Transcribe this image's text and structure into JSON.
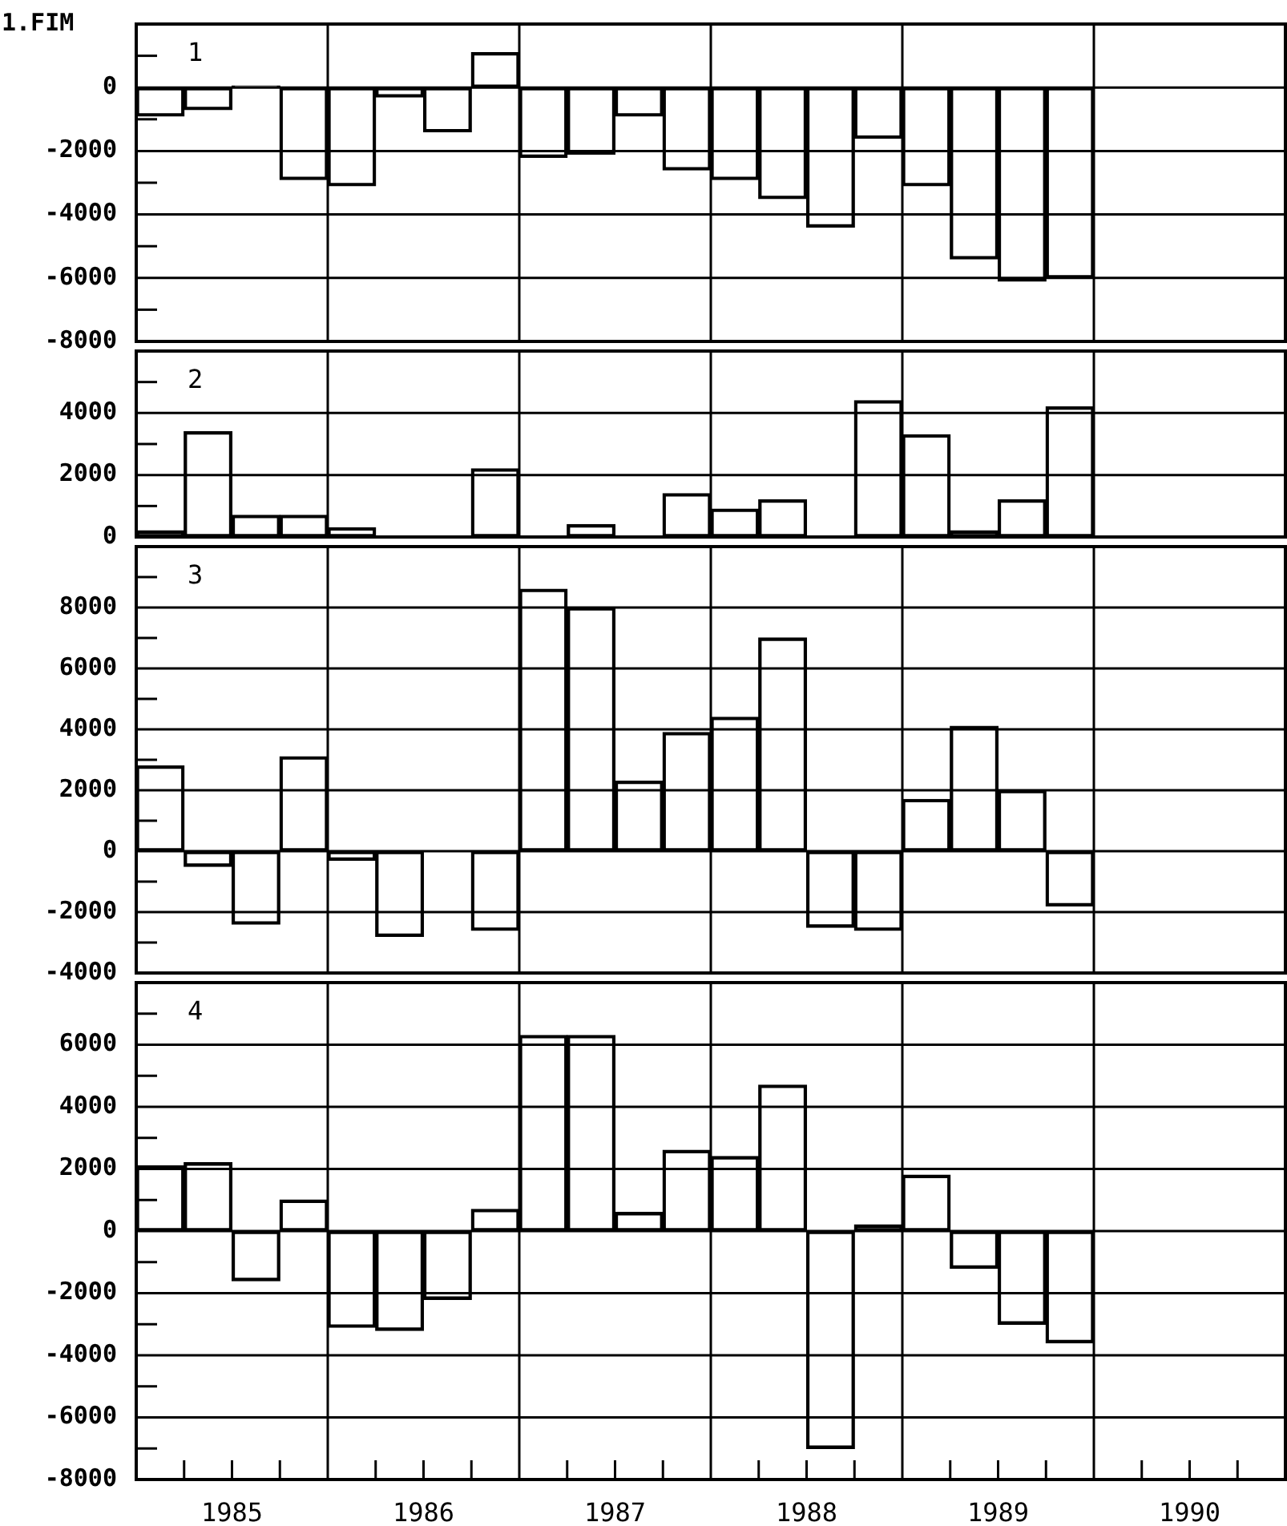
{
  "chart_data": [
    {
      "type": "bar",
      "title": "1",
      "ylabel": "1.FIM",
      "color": "#000000",
      "grid": "y",
      "tick_labels": "y",
      "x": [
        1985.125,
        1985.375,
        1985.625,
        1985.875,
        1986.125,
        1986.375,
        1986.625,
        1986.875,
        1987.125,
        1987.375,
        1987.625,
        1987.875,
        1988.125,
        1988.375,
        1988.625,
        1988.875,
        1989.125,
        1989.375,
        1989.625,
        1989.875
      ],
      "values": [
        -900,
        -700,
        50,
        -2900,
        -3100,
        -300,
        -1400,
        1100,
        -2200,
        -2100,
        -900,
        -2600,
        -2900,
        -3500,
        -4400,
        -1600,
        -3100,
        -5400,
        -6100,
        -6000
      ],
      "xlim": [
        1985,
        1991
      ],
      "ylim": [
        -8000,
        2000
      ],
      "yticks": [
        -8000,
        {
          "value": -7000,
          "label": null
        },
        -6000,
        {
          "value": -5000,
          "label": null
        },
        -4000,
        {
          "value": -3000,
          "label": null
        },
        -2000,
        {
          "value": -1000,
          "label": null
        },
        0,
        {
          "value": 1000,
          "label": null
        }
      ],
      "ref_lines": [
        {
          "axis": "x",
          "value": 1986,
          "color": "#000000"
        },
        {
          "axis": "x",
          "value": 1987,
          "color": "#000000"
        },
        {
          "axis": "x",
          "value": 1988,
          "color": "#000000"
        },
        {
          "axis": "x",
          "value": 1989,
          "color": "#000000"
        },
        {
          "axis": "x",
          "value": 1990,
          "color": "#000000"
        }
      ]
    },
    {
      "type": "bar",
      "title": "2",
      "color": "#000000",
      "grid": "y",
      "tick_labels": "y",
      "x": [
        1985.125,
        1985.375,
        1985.625,
        1985.875,
        1986.125,
        1986.375,
        1986.625,
        1986.875,
        1987.125,
        1987.375,
        1987.625,
        1987.875,
        1988.125,
        1988.375,
        1988.625,
        1988.875,
        1989.125,
        1989.375,
        1989.625,
        1989.875
      ],
      "values": [
        200,
        3400,
        700,
        700,
        300,
        0,
        0,
        2200,
        0,
        400,
        0,
        1400,
        900,
        1200,
        0,
        4400,
        3300,
        200,
        1200,
        4200
      ],
      "xlim": [
        1985,
        1991
      ],
      "ylim": [
        0,
        6000
      ],
      "yticks": [
        0,
        {
          "value": 1000,
          "label": null
        },
        2000,
        {
          "value": 3000,
          "label": null
        },
        4000,
        {
          "value": 5000,
          "label": null
        }
      ],
      "ref_lines": [
        {
          "axis": "x",
          "value": 1986,
          "color": "#000000"
        },
        {
          "axis": "x",
          "value": 1987,
          "color": "#000000"
        },
        {
          "axis": "x",
          "value": 1988,
          "color": "#000000"
        },
        {
          "axis": "x",
          "value": 1989,
          "color": "#000000"
        },
        {
          "axis": "x",
          "value": 1990,
          "color": "#000000"
        }
      ]
    },
    {
      "type": "bar",
      "title": "3",
      "color": "#000000",
      "grid": "y",
      "tick_labels": "y",
      "x": [
        1985.125,
        1985.375,
        1985.625,
        1985.875,
        1986.125,
        1986.375,
        1986.625,
        1986.875,
        1987.125,
        1987.375,
        1987.625,
        1987.875,
        1988.125,
        1988.375,
        1988.625,
        1988.875,
        1989.125,
        1989.375,
        1989.625,
        1989.875
      ],
      "values": [
        2800,
        -500,
        -2400,
        3100,
        -300,
        -2800,
        0,
        -2600,
        8600,
        8000,
        2300,
        3900,
        4400,
        7000,
        -2500,
        -2600,
        1700,
        4100,
        2000,
        -1800
      ],
      "xlim": [
        1985,
        1991
      ],
      "ylim": [
        -4000,
        10000
      ],
      "yticks": [
        -4000,
        {
          "value": -3000,
          "label": null
        },
        -2000,
        {
          "value": -1000,
          "label": null
        },
        0,
        {
          "value": 1000,
          "label": null
        },
        2000,
        {
          "value": 3000,
          "label": null
        },
        4000,
        {
          "value": 5000,
          "label": null
        },
        6000,
        {
          "value": 7000,
          "label": null
        },
        8000,
        {
          "value": 9000,
          "label": null
        }
      ],
      "ref_lines": [
        {
          "axis": "x",
          "value": 1986,
          "color": "#000000"
        },
        {
          "axis": "x",
          "value": 1987,
          "color": "#000000"
        },
        {
          "axis": "x",
          "value": 1988,
          "color": "#000000"
        },
        {
          "axis": "x",
          "value": 1989,
          "color": "#000000"
        },
        {
          "axis": "x",
          "value": 1990,
          "color": "#000000"
        }
      ]
    },
    {
      "type": "bar",
      "title": "4",
      "color": "#000000",
      "grid": "y",
      "x": [
        1985.125,
        1985.375,
        1985.625,
        1985.875,
        1986.125,
        1986.375,
        1986.625,
        1986.875,
        1987.125,
        1987.375,
        1987.625,
        1987.875,
        1988.125,
        1988.375,
        1988.625,
        1988.875,
        1989.125,
        1989.375,
        1989.625,
        1989.875
      ],
      "values": [
        2100,
        2200,
        -1600,
        1000,
        -3100,
        -3200,
        -2200,
        700,
        6300,
        6300,
        600,
        2600,
        2400,
        4700,
        -7000,
        200,
        1800,
        -1200,
        -3000,
        -3600
      ],
      "xlim": [
        1985,
        1991
      ],
      "xticks": [
        {
          "value": 1985.25,
          "label": null
        },
        {
          "value": 1985.5,
          "label": "1985"
        },
        {
          "value": 1985.75,
          "label": null
        },
        {
          "value": 1986.25,
          "label": null
        },
        {
          "value": 1986.5,
          "label": "1986"
        },
        {
          "value": 1986.75,
          "label": null
        },
        {
          "value": 1987.25,
          "label": null
        },
        {
          "value": 1987.5,
          "label": "1987"
        },
        {
          "value": 1987.75,
          "label": null
        },
        {
          "value": 1988.25,
          "label": null
        },
        {
          "value": 1988.5,
          "label": "1988"
        },
        {
          "value": 1988.75,
          "label": null
        },
        {
          "value": 1989.25,
          "label": null
        },
        {
          "value": 1989.5,
          "label": "1989"
        },
        {
          "value": 1989.75,
          "label": null
        },
        {
          "value": 1990.25,
          "label": null
        },
        {
          "value": 1990.5,
          "label": "1990"
        },
        {
          "value": 1990.75,
          "label": null
        }
      ],
      "ylim": [
        -8000,
        8000
      ],
      "yticks": [
        -8000,
        {
          "value": -7000,
          "label": null
        },
        -6000,
        {
          "value": -5000,
          "label": null
        },
        -4000,
        {
          "value": -3000,
          "label": null
        },
        -2000,
        {
          "value": -1000,
          "label": null
        },
        0,
        {
          "value": 1000,
          "label": null
        },
        2000,
        {
          "value": 3000,
          "label": null
        },
        4000,
        {
          "value": 5000,
          "label": null
        },
        6000,
        {
          "value": 7000,
          "label": null
        }
      ],
      "ref_lines": [
        {
          "axis": "x",
          "value": 1986,
          "color": "#000000"
        },
        {
          "axis": "x",
          "value": 1987,
          "color": "#000000"
        },
        {
          "axis": "x",
          "value": 1988,
          "color": "#000000"
        },
        {
          "axis": "x",
          "value": 1989,
          "color": "#000000"
        },
        {
          "axis": "x",
          "value": 1990,
          "color": "#000000"
        }
      ]
    }
  ]
}
